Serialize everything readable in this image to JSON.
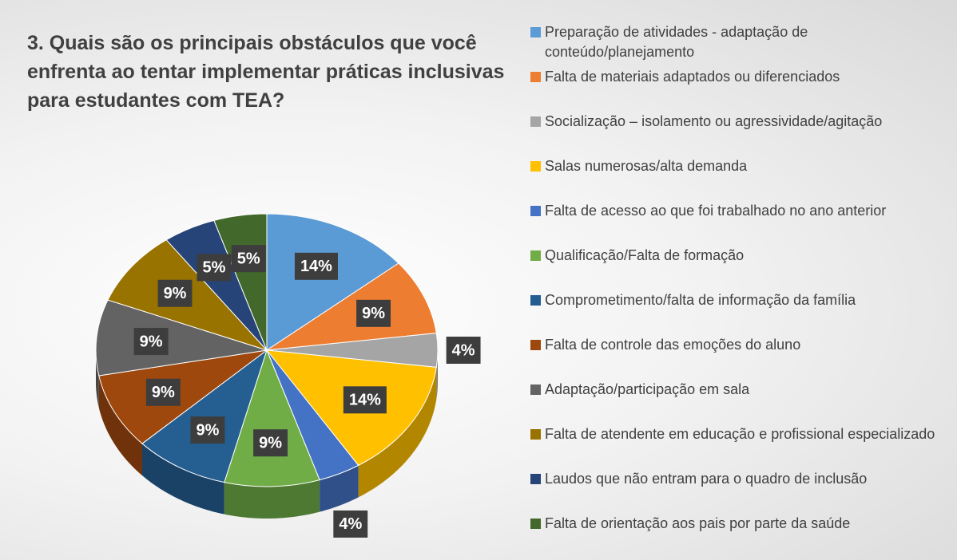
{
  "chart_data": {
    "type": "pie",
    "title": "3. Quais são os principais obstáculos que você enfrenta ao tentar implementar práticas inclusivas para estudantes com TEA?",
    "categories": [
      "Preparação de atividades - adaptação de conteúdo/planejamento",
      "Falta de materiais adaptados ou diferenciados",
      "Socialização – isolamento ou agressividade/agitação",
      "Salas numerosas/alta demanda",
      "Falta de acesso ao que foi trabalhado no ano anterior",
      "Qualificação/Falta de formação",
      "Comprometimento/falta de informação da família",
      "Falta de controle das emoções do aluno",
      "Adaptação/participação em sala",
      "Falta de atendente em educação e profissional especializado",
      "Laudos que não entram para o quadro de inclusão",
      "Falta de orientação aos pais por parte da saúde"
    ],
    "values": [
      14,
      9,
      4,
      14,
      4,
      9,
      9,
      9,
      9,
      9,
      5,
      5
    ],
    "value_labels": [
      "14%",
      "9%",
      "4%",
      "14%",
      "4%",
      "9%",
      "9%",
      "9%",
      "9%",
      "9%",
      "5%",
      "5%"
    ],
    "colors": [
      "#5b9bd5",
      "#ed7d31",
      "#a5a5a5",
      "#ffc000",
      "#4472c4",
      "#70ad47",
      "#255e91",
      "#9e480e",
      "#636363",
      "#997300",
      "#264478",
      "#43682b"
    ],
    "legend": "right"
  }
}
